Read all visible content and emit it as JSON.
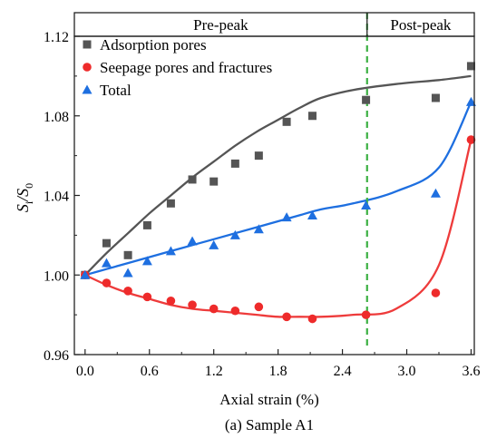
{
  "chart_data": {
    "type": "scatter",
    "caption": "(a) Sample A1",
    "xlabel": "Axial strain (%)",
    "ylabel_main": "S",
    "ylabel_sub1": "i",
    "ylabel_sep": "/S",
    "ylabel_sub2": "0",
    "xlim": [
      -0.1,
      3.63
    ],
    "ylim": [
      0.96,
      1.12
    ],
    "x_ticks": [
      0.0,
      0.6,
      1.2,
      1.8,
      2.4,
      3.0,
      3.6
    ],
    "x_tick_labels": [
      "0.0",
      "0.6",
      "1.2",
      "1.8",
      "2.4",
      "3.0",
      "3.6"
    ],
    "y_ticks": [
      0.96,
      1.0,
      1.04,
      1.08,
      1.12
    ],
    "y_tick_labels": [
      "0.96",
      "1.00",
      "1.04",
      "1.08",
      "1.12"
    ],
    "legend_position": "top-left",
    "grid": false,
    "phases": [
      {
        "label": "Pre-peak",
        "x_range": [
          -0.1,
          2.63
        ]
      },
      {
        "label": "Post-peak",
        "x_range": [
          2.63,
          3.63
        ]
      }
    ],
    "peak_line_x": 2.63,
    "peak_line_color": "#3cb043",
    "series": [
      {
        "name": "Adsorption pores",
        "marker": "square",
        "color": "#555555",
        "line_color": "#555555",
        "x": [
          0.0,
          0.2,
          0.4,
          0.58,
          0.8,
          1.0,
          1.2,
          1.4,
          1.62,
          1.88,
          2.12,
          2.62,
          3.27,
          3.6
        ],
        "y": [
          1.0,
          1.016,
          1.01,
          1.025,
          1.036,
          1.048,
          1.047,
          1.056,
          1.06,
          1.077,
          1.08,
          1.088,
          1.089,
          1.105
        ],
        "fit_y": [
          1.0,
          1.011,
          1.021,
          1.031,
          1.04,
          1.049,
          1.057,
          1.065,
          1.072,
          1.078,
          1.084,
          1.089,
          1.093,
          1.096,
          1.098,
          1.1
        ]
      },
      {
        "name": "Seepage pores and fractures",
        "marker": "circle",
        "color": "#ee2b2b",
        "line_color": "#ee3b3b",
        "x": [
          0.0,
          0.2,
          0.4,
          0.58,
          0.8,
          1.0,
          1.2,
          1.4,
          1.62,
          1.88,
          2.12,
          2.62,
          3.27,
          3.6
        ],
        "y": [
          1.0,
          0.996,
          0.992,
          0.989,
          0.987,
          0.985,
          0.983,
          0.982,
          0.984,
          0.979,
          0.978,
          0.98,
          0.991,
          1.068
        ],
        "fit_y": [
          1.0,
          0.995,
          0.991,
          0.988,
          0.985,
          0.983,
          0.982,
          0.981,
          0.98,
          0.979,
          0.979,
          0.979,
          0.98,
          0.983,
          1.005,
          1.068
        ]
      },
      {
        "name": "Total",
        "marker": "triangle",
        "color": "#1e6fe0",
        "line_color": "#1e6fe0",
        "x": [
          0.0,
          0.2,
          0.4,
          0.58,
          0.8,
          1.0,
          1.2,
          1.4,
          1.62,
          1.88,
          2.12,
          2.62,
          3.27,
          3.6
        ],
        "y": [
          1.0,
          1.006,
          1.001,
          1.007,
          1.012,
          1.017,
          1.015,
          1.02,
          1.023,
          1.029,
          1.03,
          1.035,
          1.041,
          1.087
        ],
        "fit_y": [
          1.0,
          1.003,
          1.006,
          1.009,
          1.012,
          1.015,
          1.018,
          1.021,
          1.024,
          1.027,
          1.03,
          1.033,
          1.036,
          1.042,
          1.054,
          1.087
        ]
      }
    ],
    "fit_x": [
      0.0,
      0.2,
      0.4,
      0.6,
      0.8,
      1.0,
      1.2,
      1.4,
      1.6,
      1.8,
      2.0,
      2.2,
      2.5,
      2.9,
      3.3,
      3.6
    ]
  }
}
